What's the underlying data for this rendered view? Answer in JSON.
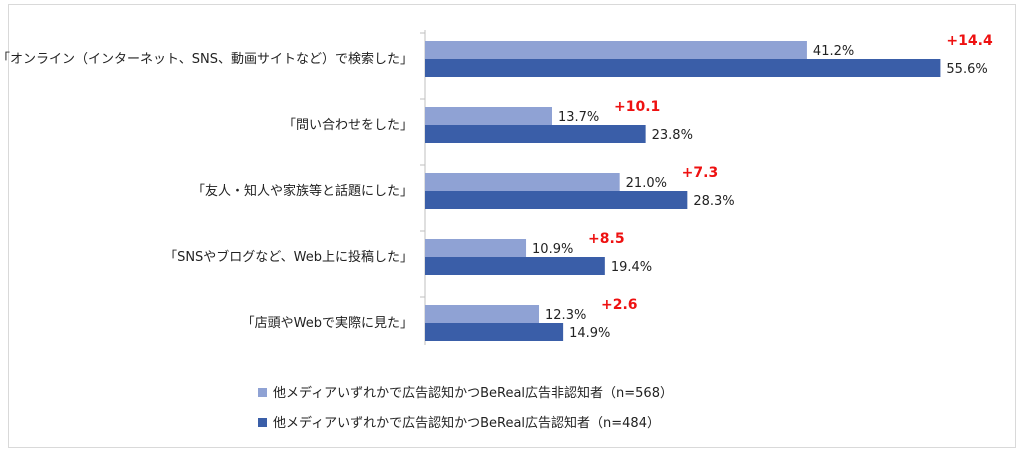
{
  "chart_data": {
    "type": "bar",
    "orientation": "horizontal",
    "categories": [
      "「オンライン（インターネット、SNS、動画サイトなど）で検索した」",
      "「問い合わせをした」",
      "「友人・知人や家族等と話題にした」",
      "「SNSやブログなど、Web上に投稿した」",
      "「店頭やWebで実際に見た」"
    ],
    "series": [
      {
        "name": "他メディアいずれかで広告認知かつBeReal広告非認知者（n=568）",
        "color": "#8fa2d4",
        "values": [
          41.2,
          13.7,
          21.0,
          10.9,
          12.3
        ],
        "labels": [
          "41.2%",
          "13.7%",
          "21.0%",
          "10.9%",
          "12.3%"
        ]
      },
      {
        "name": "他メディアいずれかで広告認知かつBeReal広告認知者（n=484）",
        "color": "#3a5ea8",
        "values": [
          55.6,
          23.8,
          28.3,
          19.4,
          14.9
        ],
        "labels": [
          "55.6%",
          "23.8%",
          "28.3%",
          "19.4%",
          "14.9%"
        ]
      }
    ],
    "differences": [
      "+14.4",
      "+10.1",
      "+7.3",
      "+8.5",
      "+2.6"
    ],
    "difference_color": "#ee1111",
    "xlim": [
      0,
      60
    ],
    "grid": false,
    "legend_position": "bottom"
  }
}
